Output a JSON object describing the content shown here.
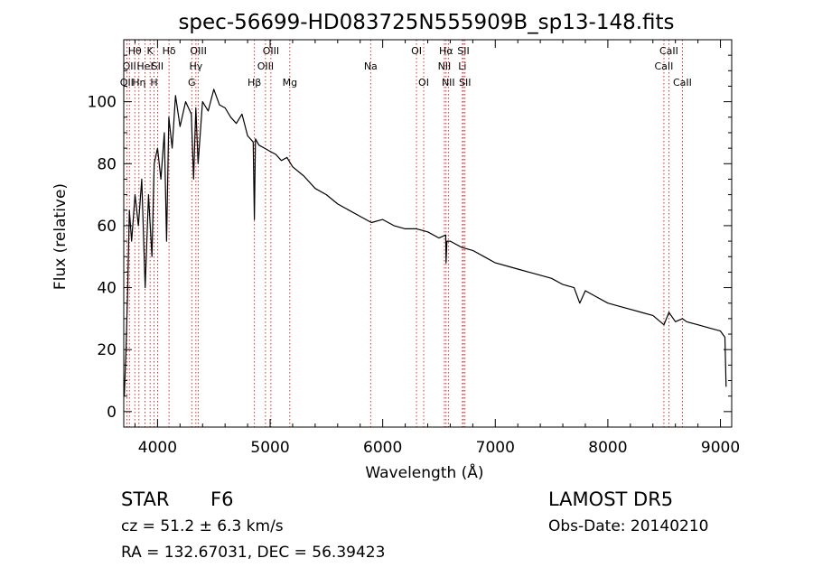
{
  "chart_data": {
    "type": "line",
    "title": "spec-56699-HD083725N555909B_sp13-148.fits",
    "xlabel": "Wavelength (Å)",
    "ylabel": "Flux (relative)",
    "xlim": [
      3700,
      9100
    ],
    "ylim": [
      -5,
      120
    ],
    "xticks": [
      4000,
      5000,
      6000,
      7000,
      8000,
      9000
    ],
    "yticks": [
      0,
      20,
      40,
      60,
      80,
      100
    ],
    "line_color": "#000000",
    "marker_color": "#cc0000",
    "series": [
      {
        "x": [
          3705,
          3720,
          3735,
          3750,
          3770,
          3800,
          3830,
          3860,
          3890,
          3920,
          3950,
          3970,
          4000,
          4030,
          4060,
          4080,
          4100,
          4130,
          4160,
          4200,
          4250,
          4300,
          4320,
          4340,
          4360,
          4400,
          4450,
          4500,
          4550,
          4600,
          4650,
          4700,
          4750,
          4800,
          4850,
          4860,
          4870,
          4900,
          4950,
          5000,
          5050,
          5100,
          5150,
          5200,
          5300,
          5400,
          5500,
          5600,
          5700,
          5800,
          5900,
          6000,
          6100,
          6200,
          6300,
          6400,
          6500,
          6560,
          6563,
          6570,
          6600,
          6700,
          6800,
          6900,
          7000,
          7100,
          7200,
          7300,
          7400,
          7500,
          7600,
          7700,
          7750,
          7800,
          7900,
          8000,
          8100,
          8200,
          8300,
          8400,
          8498,
          8542,
          8600,
          8662,
          8700,
          8800,
          8900,
          9000,
          9040,
          9050
        ],
        "y": [
          5,
          20,
          40,
          65,
          55,
          70,
          60,
          75,
          40,
          70,
          50,
          80,
          85,
          75,
          90,
          55,
          95,
          85,
          102,
          92,
          100,
          96,
          75,
          98,
          80,
          100,
          97,
          104,
          99,
          98,
          95,
          93,
          96,
          89,
          87,
          62,
          88,
          86,
          85,
          84,
          83,
          81,
          82,
          79,
          76,
          72,
          70,
          67,
          65,
          63,
          61,
          62,
          60,
          59,
          59,
          58,
          56,
          57,
          48,
          55,
          55,
          53,
          52,
          50,
          48,
          47,
          46,
          45,
          44,
          43,
          41,
          40,
          35,
          39,
          37,
          35,
          34,
          33,
          32,
          31,
          28,
          32,
          29,
          30,
          29,
          28,
          27,
          26,
          24,
          8
        ]
      }
    ],
    "lines": [
      {
        "wl": 3727,
        "label": "OII",
        "row": 2
      },
      {
        "wl": 3750,
        "label": "OII",
        "row": 1
      },
      {
        "wl": 3798,
        "label": "Hθ",
        "row": 0
      },
      {
        "wl": 3835,
        "label": "Hη",
        "row": 2
      },
      {
        "wl": 3889,
        "label": "HeI",
        "row": 1
      },
      {
        "wl": 3934,
        "label": "K",
        "row": 0
      },
      {
        "wl": 3969,
        "label": "H",
        "row": 2
      },
      {
        "wl": 4000,
        "label": "SII",
        "row": 1
      },
      {
        "wl": 4102,
        "label": "Hδ",
        "row": 0
      },
      {
        "wl": 4304,
        "label": "G",
        "row": 2
      },
      {
        "wl": 4341,
        "label": "Hγ",
        "row": 1
      },
      {
        "wl": 4363,
        "label": "OIII",
        "row": 0
      },
      {
        "wl": 4861,
        "label": "Hβ",
        "row": 2
      },
      {
        "wl": 4959,
        "label": "OIII",
        "row": 1
      },
      {
        "wl": 5007,
        "label": "OIII",
        "row": 0
      },
      {
        "wl": 5175,
        "label": "Mg",
        "row": 2
      },
      {
        "wl": 5893,
        "label": "Na",
        "row": 1
      },
      {
        "wl": 6300,
        "label": "OI",
        "row": 0
      },
      {
        "wl": 6364,
        "label": "OI",
        "row": 2
      },
      {
        "wl": 6548,
        "label": "NII",
        "row": 1
      },
      {
        "wl": 6563,
        "label": "Hα",
        "row": 0
      },
      {
        "wl": 6583,
        "label": "NII",
        "row": 2
      },
      {
        "wl": 6708,
        "label": "Li",
        "row": 1
      },
      {
        "wl": 6717,
        "label": "SII",
        "row": 0
      },
      {
        "wl": 6731,
        "label": "SII",
        "row": 2
      },
      {
        "wl": 8498,
        "label": "CaII",
        "row": 1
      },
      {
        "wl": 8542,
        "label": "CaII",
        "row": 0
      },
      {
        "wl": 8662,
        "label": "CaII",
        "row": 2
      }
    ]
  },
  "info": {
    "object_class": "STAR",
    "subclass": "F6",
    "survey": "LAMOST DR5",
    "redshift": "cz = 51.2 ± 6.3 km/s",
    "obs_date": "Obs-Date: 20140210",
    "coords": "RA = 132.67031, DEC =  56.39423"
  }
}
